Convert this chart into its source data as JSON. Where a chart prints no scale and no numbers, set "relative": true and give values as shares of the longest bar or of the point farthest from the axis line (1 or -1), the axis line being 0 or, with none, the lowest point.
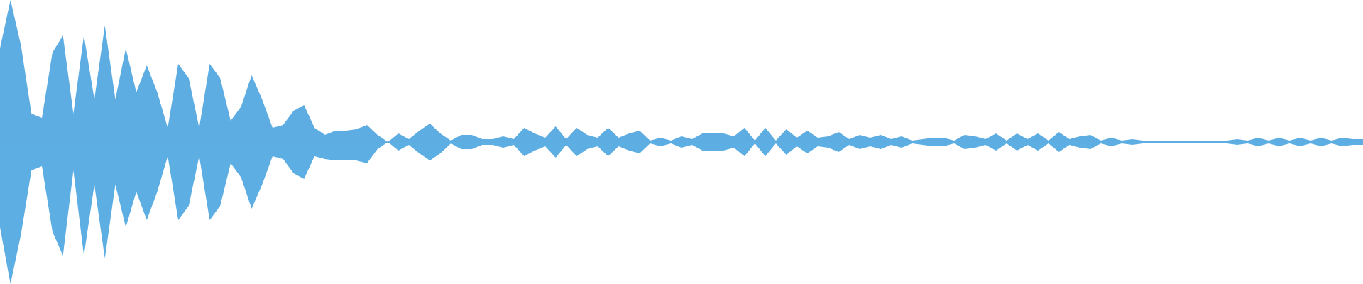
{
  "chart_data": {
    "type": "area",
    "relative": true,
    "categories": [
      null,
      null,
      null,
      null,
      null,
      null,
      null,
      null,
      null,
      null,
      null,
      null,
      null,
      null,
      null,
      null,
      null,
      null,
      null,
      null,
      null,
      null,
      null,
      null,
      null,
      null,
      null,
      null,
      null,
      null,
      null,
      null,
      null,
      null,
      null,
      null,
      null,
      null,
      null,
      null,
      null,
      null,
      null,
      null,
      null,
      null,
      null,
      null,
      null,
      null,
      null,
      null,
      null,
      null,
      null,
      null,
      null,
      null,
      null,
      null,
      null,
      null,
      null,
      null,
      null,
      null,
      null,
      null,
      null,
      null,
      null,
      null,
      null,
      null,
      null,
      null,
      null,
      null,
      null,
      null,
      null,
      null,
      null,
      null,
      null,
      null,
      null,
      null,
      null,
      null,
      null,
      null,
      null,
      null,
      null,
      null,
      null,
      null,
      null,
      null,
      null,
      null,
      null,
      null,
      null,
      null,
      null,
      null,
      null,
      null,
      null,
      null,
      null,
      null,
      null,
      null,
      null,
      null,
      null,
      null,
      null,
      null,
      null,
      null,
      null,
      null,
      null,
      null,
      null,
      null,
      null
    ],
    "series": [
      {
        "color": "#5dade2",
        "values": [
          0.66,
          1,
          0.68,
          0.2,
          0.17,
          0.63,
          0.75,
          0.2,
          0.75,
          0.3,
          0.82,
          0.3,
          0.66,
          0.35,
          0.54,
          0.35,
          0.1,
          0.55,
          0.45,
          0.1,
          0.55,
          0.45,
          0.15,
          0.25,
          0.47,
          0.3,
          0.1,
          0.12,
          0.22,
          0.26,
          0.1,
          0.05,
          0.08,
          0.08,
          0.09,
          0.12,
          0.05,
          0,
          0.06,
          0.02,
          0.08,
          0.13,
          0.06,
          0.01,
          0.05,
          0.05,
          0.02,
          0.02,
          0.04,
          0.02,
          0.1,
          0.06,
          0.03,
          0.11,
          0.02,
          0.1,
          0.05,
          0.03,
          0.1,
          0.03,
          0.06,
          0.08,
          0.01,
          0.03,
          0.01,
          0.04,
          0.02,
          0.06,
          0.06,
          0.06,
          0.04,
          0.1,
          0.01,
          0.1,
          0.01,
          0.09,
          0.03,
          0.08,
          0.03,
          0.04,
          0.07,
          0.02,
          0.05,
          0.03,
          0.05,
          0.02,
          0.04,
          0.01,
          0.02,
          0.03,
          0.03,
          0.01,
          0.05,
          0.04,
          0.02,
          0.06,
          0.01,
          0.06,
          0.02,
          0.06,
          0.01,
          0.07,
          0.02,
          0.04,
          0.05,
          0.01,
          0.03,
          0.01,
          0.02,
          0.01,
          0.01,
          0.01,
          0.01,
          0.01,
          0.01,
          0.01,
          0.01,
          0.01,
          0.02,
          0.01,
          0.03,
          0.01,
          0.03,
          0.01,
          0.03,
          0.01,
          0.03,
          0.01,
          0.03,
          0.02,
          0.02
        ]
      },
      {
        "color": "#5caee3",
        "values": [
          -0.6,
          -1,
          -0.65,
          -0.2,
          -0.17,
          -0.63,
          -0.8,
          -0.2,
          -0.8,
          -0.3,
          -0.82,
          -0.3,
          -0.6,
          -0.35,
          -0.55,
          -0.35,
          -0.1,
          -0.55,
          -0.45,
          -0.1,
          -0.55,
          -0.45,
          -0.15,
          -0.25,
          -0.47,
          -0.3,
          -0.1,
          -0.12,
          -0.22,
          -0.26,
          -0.1,
          -0.12,
          -0.13,
          -0.13,
          -0.13,
          -0.15,
          -0.05,
          0,
          -0.06,
          -0.02,
          -0.08,
          -0.13,
          -0.08,
          -0.01,
          -0.05,
          -0.05,
          -0.02,
          -0.02,
          -0.04,
          -0.02,
          -0.1,
          -0.06,
          -0.03,
          -0.11,
          -0.02,
          -0.1,
          -0.05,
          -0.03,
          -0.1,
          -0.03,
          -0.06,
          -0.08,
          -0.01,
          -0.03,
          -0.01,
          -0.04,
          -0.02,
          -0.06,
          -0.06,
          -0.06,
          -0.04,
          -0.1,
          -0.01,
          -0.1,
          -0.01,
          -0.09,
          -0.03,
          -0.08,
          -0.03,
          -0.04,
          -0.07,
          -0.02,
          -0.05,
          -0.03,
          -0.05,
          -0.02,
          -0.04,
          -0.01,
          -0.02,
          -0.03,
          -0.03,
          -0.01,
          -0.05,
          -0.04,
          -0.02,
          -0.06,
          -0.01,
          -0.06,
          -0.02,
          -0.06,
          -0.01,
          -0.07,
          -0.02,
          -0.04,
          -0.05,
          -0.01,
          -0.03,
          -0.01,
          -0.02,
          -0.01,
          -0.01,
          -0.01,
          -0.01,
          -0.01,
          -0.01,
          -0.01,
          -0.01,
          -0.01,
          -0.02,
          -0.01,
          -0.03,
          -0.01,
          -0.03,
          -0.01,
          -0.03,
          -0.01,
          -0.03,
          -0.01,
          -0.03,
          -0.02,
          -0.02
        ]
      }
    ]
  }
}
